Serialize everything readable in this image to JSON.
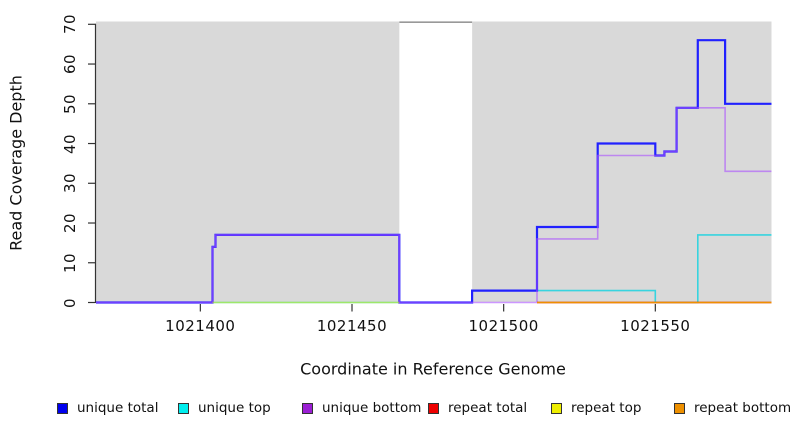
{
  "chart_data": {
    "type": "line",
    "subtype": "step",
    "title": "",
    "xlabel": "Coordinate in Reference Genome",
    "ylabel": "Read Coverage Depth",
    "xlim": [
      1021365.6,
      1021588.3
    ],
    "ylim": [
      0,
      70
    ],
    "x_ticks": [
      1021400,
      1021450,
      1021500,
      1021550
    ],
    "y_ticks": [
      0,
      10,
      20,
      30,
      40,
      50,
      60,
      70
    ],
    "grid": "off",
    "plot_background": "#d9d9d9",
    "masked_region": {
      "x0": 1021465.6,
      "x1": 1021489.6,
      "color": "#ffffff",
      "top_border_color": "#999999"
    },
    "axis_color": "#333333",
    "legend_position": "bottom",
    "series": [
      {
        "name": "unique total",
        "color": "#2121ff",
        "opacity": 1,
        "width": 2.2,
        "steps": [
          [
            1021365.6,
            0
          ],
          [
            1021404,
            14
          ],
          [
            1021405,
            17
          ],
          [
            1021465.6,
            0
          ],
          [
            1021489.6,
            3
          ],
          [
            1021511,
            19
          ],
          [
            1021531,
            40
          ],
          [
            1021550,
            37
          ],
          [
            1021553,
            38
          ],
          [
            1021557,
            49
          ],
          [
            1021564,
            66
          ],
          [
            1021573,
            50
          ],
          [
            1021588.3,
            50
          ]
        ]
      },
      {
        "name": "unique top",
        "color": "#00d2e0",
        "opacity": 0.75,
        "width": 1.6,
        "steps": [
          [
            1021404,
            0
          ],
          [
            1021489.6,
            3
          ],
          [
            1021550,
            0
          ],
          [
            1021564,
            17
          ],
          [
            1021588.3,
            17
          ]
        ]
      },
      {
        "name": "unique bottom",
        "color": "#aa50ff",
        "opacity": 0.6,
        "width": 1.6,
        "steps": [
          [
            1021365.6,
            0
          ],
          [
            1021404,
            14
          ],
          [
            1021405,
            17
          ],
          [
            1021465.6,
            0
          ],
          [
            1021511,
            16
          ],
          [
            1021531,
            37
          ],
          [
            1021553,
            38
          ],
          [
            1021557,
            49
          ],
          [
            1021573,
            33
          ],
          [
            1021588.3,
            33
          ]
        ]
      },
      {
        "name": "repeat total",
        "color": "#dd0000",
        "opacity": 1,
        "width": 1.4,
        "steps": [
          [
            1021511,
            0
          ],
          [
            1021588.3,
            0
          ]
        ]
      },
      {
        "name": "repeat top",
        "color": "#eeee00",
        "opacity": 0.55,
        "width": 1.6,
        "steps": [
          [
            1021404,
            0
          ],
          [
            1021465.6,
            0
          ]
        ]
      },
      {
        "name": "repeat bottom",
        "color": "#ee9000",
        "opacity": 1,
        "width": 1.6,
        "steps": [
          [
            1021511,
            0
          ],
          [
            1021588.3,
            0
          ]
        ]
      }
    ],
    "legend": [
      {
        "label": "unique total",
        "color": "#0000ee"
      },
      {
        "label": "unique top",
        "color": "#00eeee"
      },
      {
        "label": "unique bottom",
        "color": "#9b1fd4"
      },
      {
        "label": "repeat total",
        "color": "#ee0000"
      },
      {
        "label": "repeat top",
        "color": "#eeee00"
      },
      {
        "label": "repeat bottom",
        "color": "#ee9000"
      }
    ]
  }
}
